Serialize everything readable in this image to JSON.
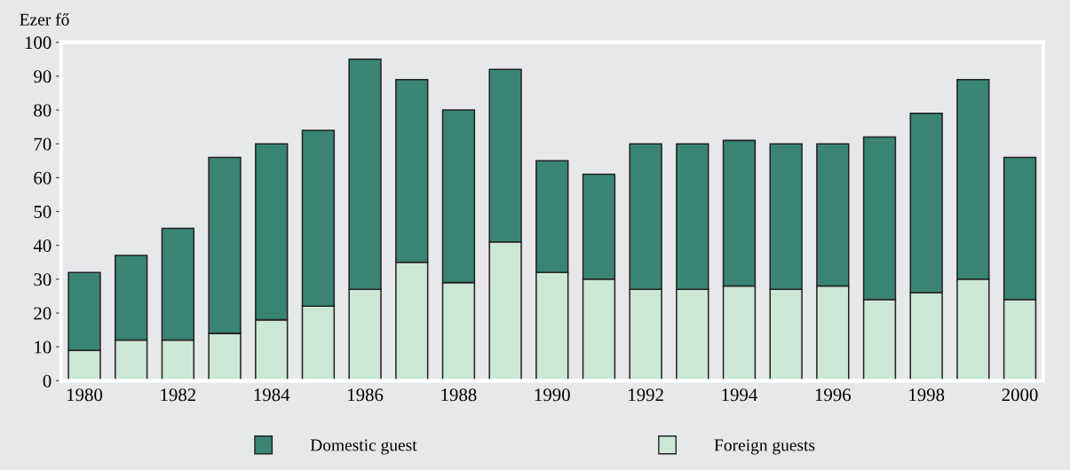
{
  "chart_data": {
    "type": "bar",
    "stacked": true,
    "ylabel": "Ezer fő",
    "x": [
      1980,
      1981,
      1982,
      1983,
      1984,
      1985,
      1986,
      1987,
      1988,
      1989,
      1990,
      1991,
      1992,
      1993,
      1994,
      1995,
      1996,
      1997,
      1998,
      1999,
      2000
    ],
    "series": [
      {
        "name": "Foreign guests",
        "color": "#cde7d6",
        "values": [
          9,
          12,
          12,
          14,
          18,
          22,
          27,
          35,
          29,
          41,
          32,
          30,
          27,
          27,
          28,
          27,
          28,
          24,
          26,
          30,
          24
        ]
      },
      {
        "name": "Domestic guest",
        "color": "#3a8473",
        "values": [
          23,
          25,
          33,
          52,
          52,
          52,
          68,
          54,
          51,
          51,
          33,
          31,
          43,
          43,
          43,
          43,
          42,
          48,
          53,
          59,
          42
        ]
      }
    ],
    "xlim": [
      1979.5,
      2000.5
    ],
    "xticks": [
      1980,
      1982,
      1984,
      1986,
      1988,
      1990,
      1992,
      1994,
      1996,
      1998,
      2000
    ],
    "ylim": [
      0,
      100
    ],
    "yticks": [
      0,
      10,
      20,
      30,
      40,
      50,
      60,
      70,
      80,
      90,
      100
    ],
    "grid": false,
    "legend": "bottom"
  }
}
